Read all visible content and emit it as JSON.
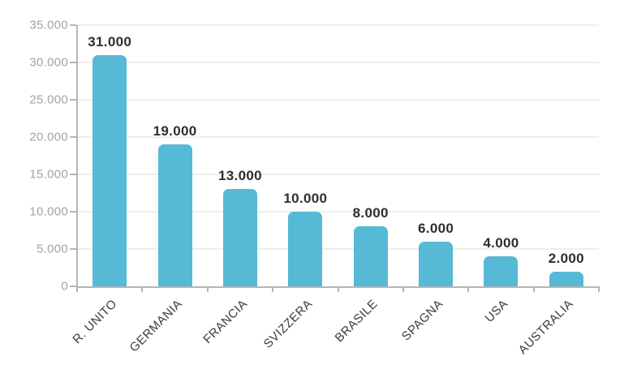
{
  "chart_data": {
    "type": "bar",
    "categories": [
      "R. UNITO",
      "GERMANIA",
      "FRANCIA",
      "SVIZZERA",
      "BRASILE",
      "SPAGNA",
      "USA",
      "AUSTRALIA"
    ],
    "values": [
      31000,
      19000,
      13000,
      10000,
      8000,
      6000,
      4000,
      2000
    ],
    "value_labels": [
      "31.000",
      "19.000",
      "13.000",
      "10.000",
      "8.000",
      "6.000",
      "4.000",
      "2.000"
    ],
    "title": "",
    "xlabel": "",
    "ylabel": "",
    "ylim": [
      0,
      35000
    ],
    "y_tick_step": 5000,
    "y_tick_labels": [
      "0",
      "5.000",
      "10.000",
      "15.000",
      "20.000",
      "25.000",
      "30.000",
      "35.000"
    ],
    "grid": true,
    "legend": false,
    "colors": {
      "bar": "#56b9d5",
      "grid": "#f1eee3",
      "axis": "#b5b5b5",
      "y_tick_label": "#a3a3a3",
      "value_label": "#2e2e2e",
      "category_label": "#3b3b3b",
      "background": "#ffffff"
    }
  }
}
